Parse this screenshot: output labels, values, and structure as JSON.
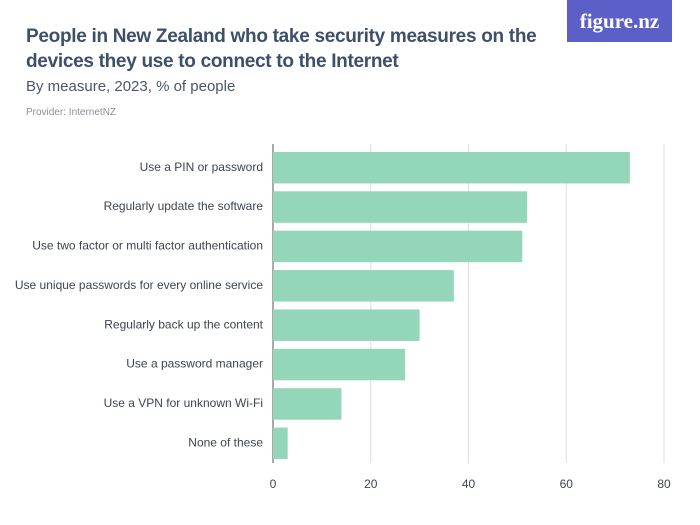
{
  "logo": "figure.nz",
  "chart_data": {
    "type": "bar",
    "orientation": "horizontal",
    "title": "People in New Zealand who take security measures on the devices they use to connect to the Internet",
    "subtitle": "By measure, 2023, % of people",
    "provider": "Provider: InternetNZ",
    "categories": [
      "Use a PIN or password",
      "Regularly update the software",
      "Use two factor or multi factor authentication",
      "Use unique passwords for every online service",
      "Regularly back up the content",
      "Use a password manager",
      "Use a VPN for unknown Wi-Fi",
      "None of these"
    ],
    "values": [
      73,
      52,
      51,
      37,
      30,
      27,
      14,
      3
    ],
    "color": "#94d6b9",
    "xlim": [
      0,
      80
    ],
    "xticks": [
      0,
      20,
      40,
      60,
      80
    ],
    "grid": true
  }
}
